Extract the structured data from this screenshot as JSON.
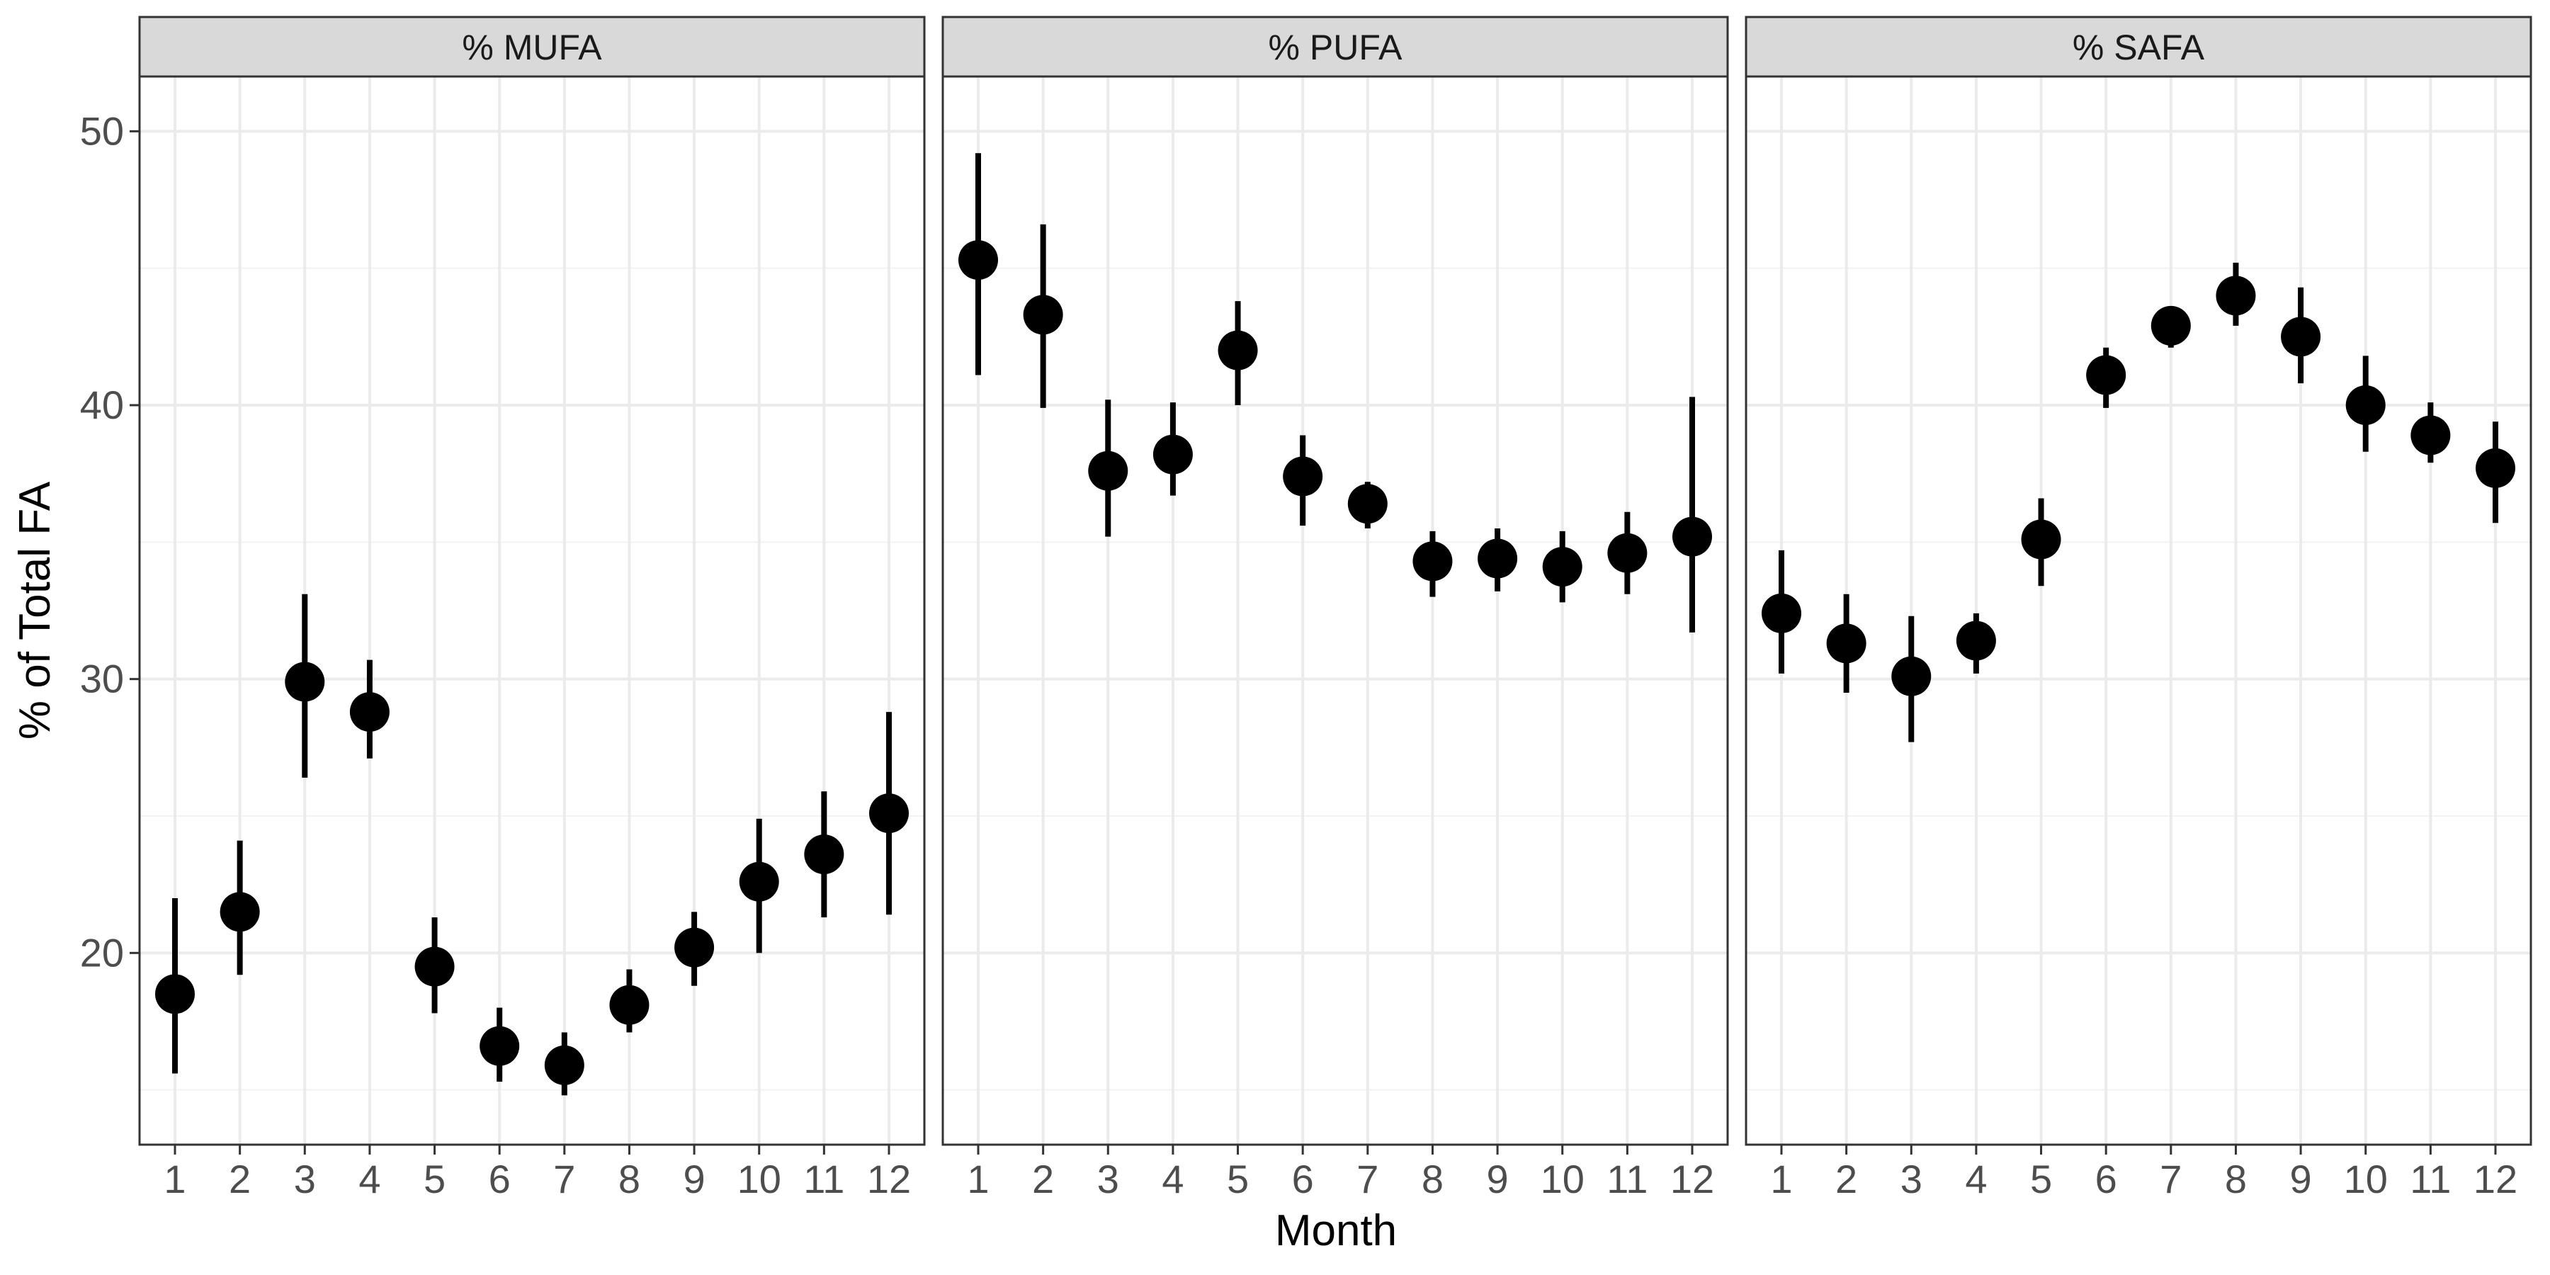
{
  "chart_data": {
    "type": "scatter",
    "subtype": "faceted point-range (mean with error bars)",
    "xlabel": "Month",
    "ylabel": "% of Total FA",
    "x": [
      1,
      2,
      3,
      4,
      5,
      6,
      7,
      8,
      9,
      10,
      11,
      12
    ],
    "x_tick_labels": [
      "1",
      "2",
      "3",
      "4",
      "5",
      "6",
      "7",
      "8",
      "9",
      "10",
      "11",
      "12"
    ],
    "ylim": [
      13,
      52
    ],
    "y_ticks": [
      20,
      30,
      40,
      50
    ],
    "grid": true,
    "legend": "none",
    "colors": {
      "points": "#000000",
      "strip_fill": "#d9d9d9",
      "grid": "#ebebeb",
      "panel_border": "#333333"
    },
    "facets": [
      {
        "label": "% MUFA",
        "mean": [
          18.5,
          21.5,
          29.9,
          28.8,
          19.5,
          16.6,
          15.9,
          18.1,
          20.2,
          22.6,
          23.6,
          25.1
        ],
        "lower": [
          15.6,
          19.2,
          26.4,
          27.1,
          17.8,
          15.3,
          14.8,
          17.1,
          18.8,
          20.0,
          21.3,
          21.4
        ],
        "upper": [
          22.0,
          24.1,
          33.1,
          30.7,
          21.3,
          18.0,
          17.1,
          19.4,
          21.5,
          24.9,
          25.9,
          28.8
        ]
      },
      {
        "label": "% PUFA",
        "mean": [
          45.3,
          43.3,
          37.6,
          38.2,
          42.0,
          37.4,
          36.4,
          34.3,
          34.4,
          34.1,
          34.6,
          35.2
        ],
        "lower": [
          41.1,
          39.9,
          35.2,
          36.7,
          40.0,
          35.6,
          35.5,
          33.0,
          33.2,
          32.8,
          33.1,
          31.7
        ],
        "upper": [
          49.2,
          46.6,
          40.2,
          40.1,
          43.8,
          38.9,
          37.2,
          35.4,
          35.5,
          35.4,
          36.1,
          40.3
        ]
      },
      {
        "label": "% SAFA",
        "mean": [
          32.4,
          31.3,
          30.1,
          31.4,
          35.1,
          41.1,
          42.9,
          44.0,
          42.5,
          40.0,
          38.9,
          37.7
        ],
        "lower": [
          30.2,
          29.5,
          27.7,
          30.2,
          33.4,
          39.9,
          42.1,
          42.9,
          40.8,
          38.3,
          37.9,
          35.7
        ],
        "upper": [
          34.7,
          33.1,
          32.3,
          32.4,
          36.6,
          42.1,
          43.6,
          45.2,
          44.3,
          41.8,
          40.1,
          39.4
        ]
      }
    ]
  }
}
